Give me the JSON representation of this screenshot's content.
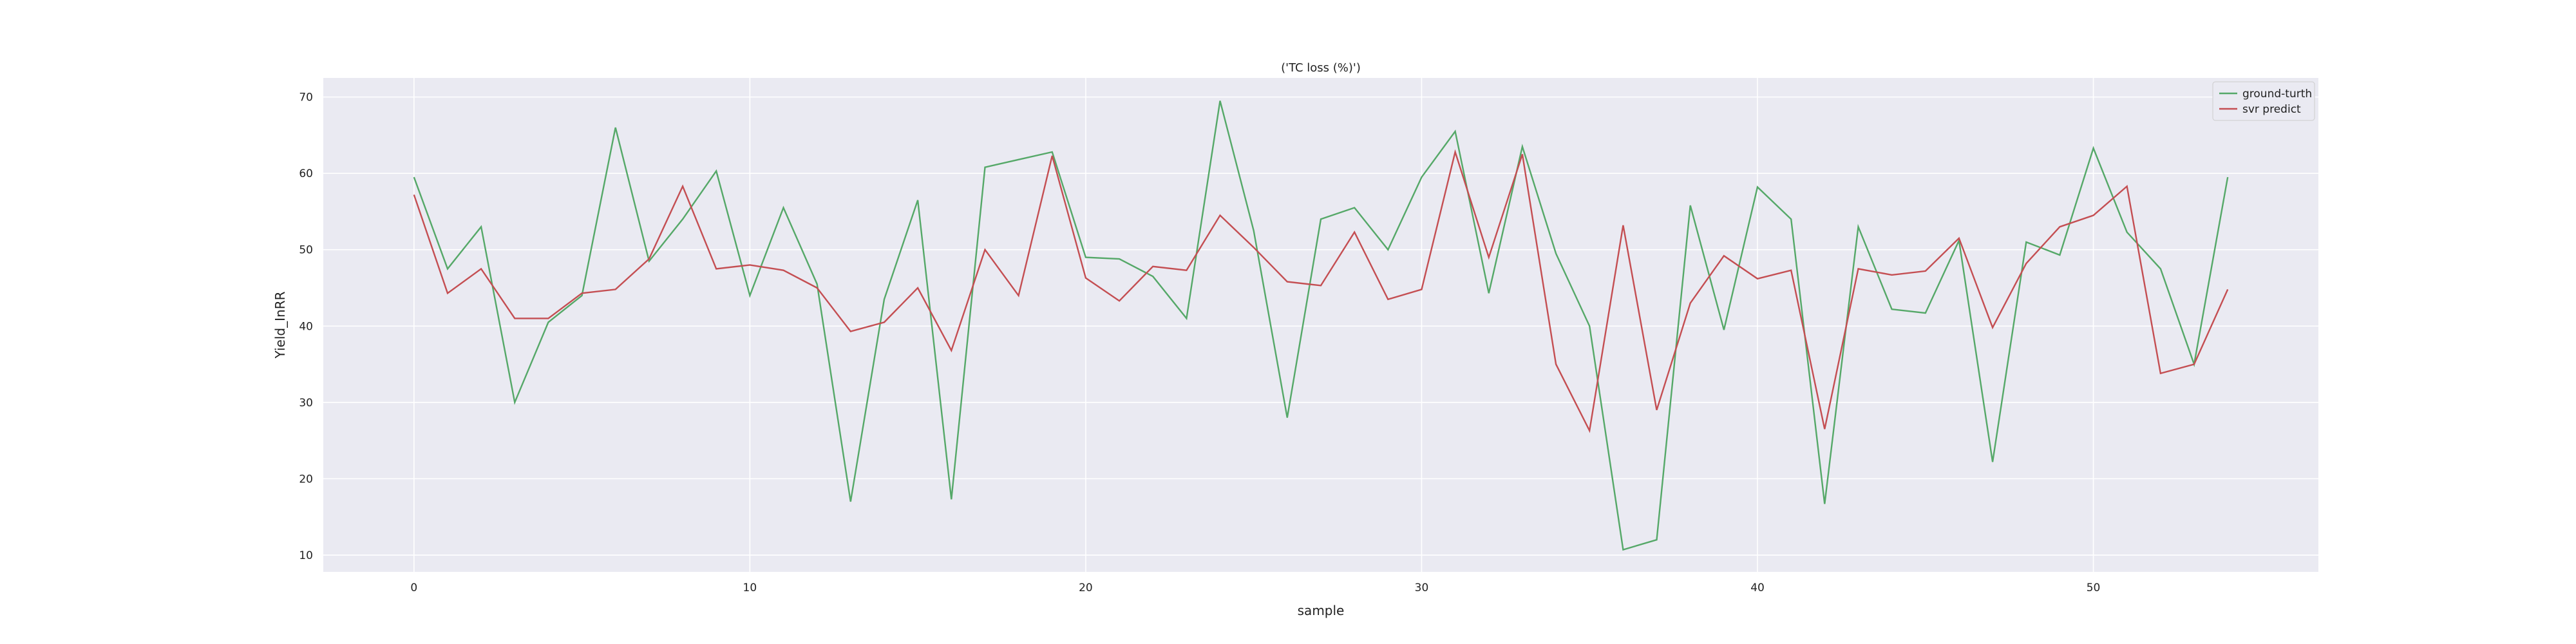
{
  "chart_data": {
    "type": "line",
    "title": "('TC loss (%)')",
    "xlabel": "sample",
    "ylabel": "Yield_InRR",
    "xlim": [
      -2.7,
      56.7
    ],
    "ylim": [
      7.8,
      72.5
    ],
    "x_ticks": [
      0,
      10,
      20,
      30,
      40,
      50
    ],
    "y_ticks": [
      10,
      20,
      30,
      40,
      50,
      60,
      70
    ],
    "grid": true,
    "legend": "top-right",
    "background": "#eaeaf2",
    "x": [
      0,
      1,
      2,
      3,
      4,
      5,
      6,
      7,
      8,
      9,
      10,
      11,
      12,
      13,
      14,
      15,
      16,
      17,
      18,
      19,
      20,
      21,
      22,
      23,
      24,
      25,
      26,
      27,
      28,
      29,
      30,
      31,
      32,
      33,
      34,
      35,
      36,
      37,
      38,
      39,
      40,
      41,
      42,
      43,
      44,
      45,
      46,
      47,
      48,
      49,
      50,
      51,
      52,
      53,
      54
    ],
    "series": [
      {
        "name": "ground-turth",
        "color": "#55a868",
        "values": [
          59.5,
          47.5,
          53,
          30,
          40.5,
          44,
          66,
          48.5,
          54,
          60.3,
          44,
          55.5,
          45.5,
          17,
          43.5,
          56.5,
          17.3,
          60.8,
          61.8,
          62.8,
          49,
          48.8,
          46.5,
          41,
          69.5,
          52.5,
          28,
          54,
          55.5,
          50,
          59.5,
          65.5,
          44.3,
          63.5,
          49.5,
          40,
          10.7,
          12,
          55.8,
          39.5,
          58.2,
          54,
          16.7,
          53,
          42.2,
          41.7,
          51.2,
          22.2,
          51,
          49.3,
          63.3,
          52.3,
          47.5,
          35,
          59.5
        ]
      },
      {
        "name": "svr predict",
        "color": "#c44e52",
        "values": [
          57.2,
          44.3,
          47.5,
          41,
          41,
          44.3,
          44.8,
          48.8,
          58.3,
          47.5,
          48,
          47.3,
          45,
          39.3,
          40.5,
          45,
          36.8,
          50,
          44,
          62.3,
          46.3,
          43.3,
          47.8,
          47.3,
          54.5,
          50.3,
          45.8,
          45.3,
          52.3,
          43.5,
          44.8,
          62.8,
          49,
          62.5,
          35,
          26.3,
          53.2,
          29,
          43,
          49.2,
          46.2,
          47.3,
          26.5,
          47.5,
          46.7,
          47.2,
          51.5,
          39.8,
          48.2,
          53,
          54.5,
          58.3,
          33.8,
          35,
          44.8
        ]
      }
    ]
  }
}
